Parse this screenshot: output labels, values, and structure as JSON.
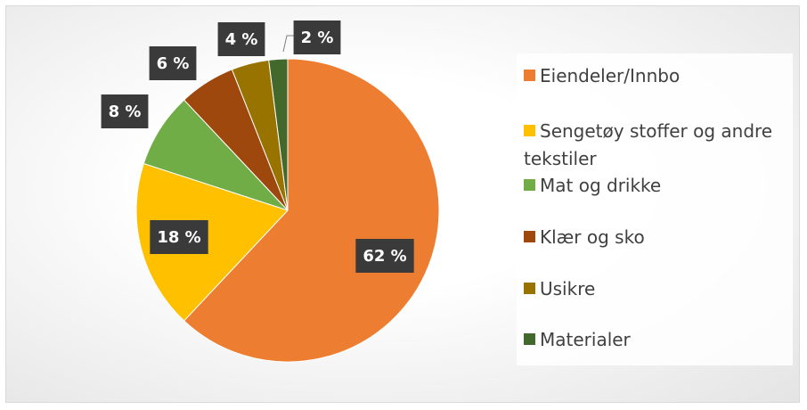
{
  "chart_data": {
    "type": "pie",
    "categories": [
      "Eiendeler/Innbo",
      "Sengetøy stoffer og andre tekstiler",
      "Mat og drikke",
      "Klær og sko",
      "Usikre",
      "Materialer"
    ],
    "values": [
      62,
      18,
      8,
      6,
      4,
      2
    ],
    "value_labels": [
      "62 %",
      "18 %",
      "8 %",
      "6 %",
      "4 %",
      "2 %"
    ],
    "colors": [
      "#ED7D31",
      "#FFC000",
      "#70AD47",
      "#9E480E",
      "#997300",
      "#43682B"
    ],
    "legend": "right"
  }
}
